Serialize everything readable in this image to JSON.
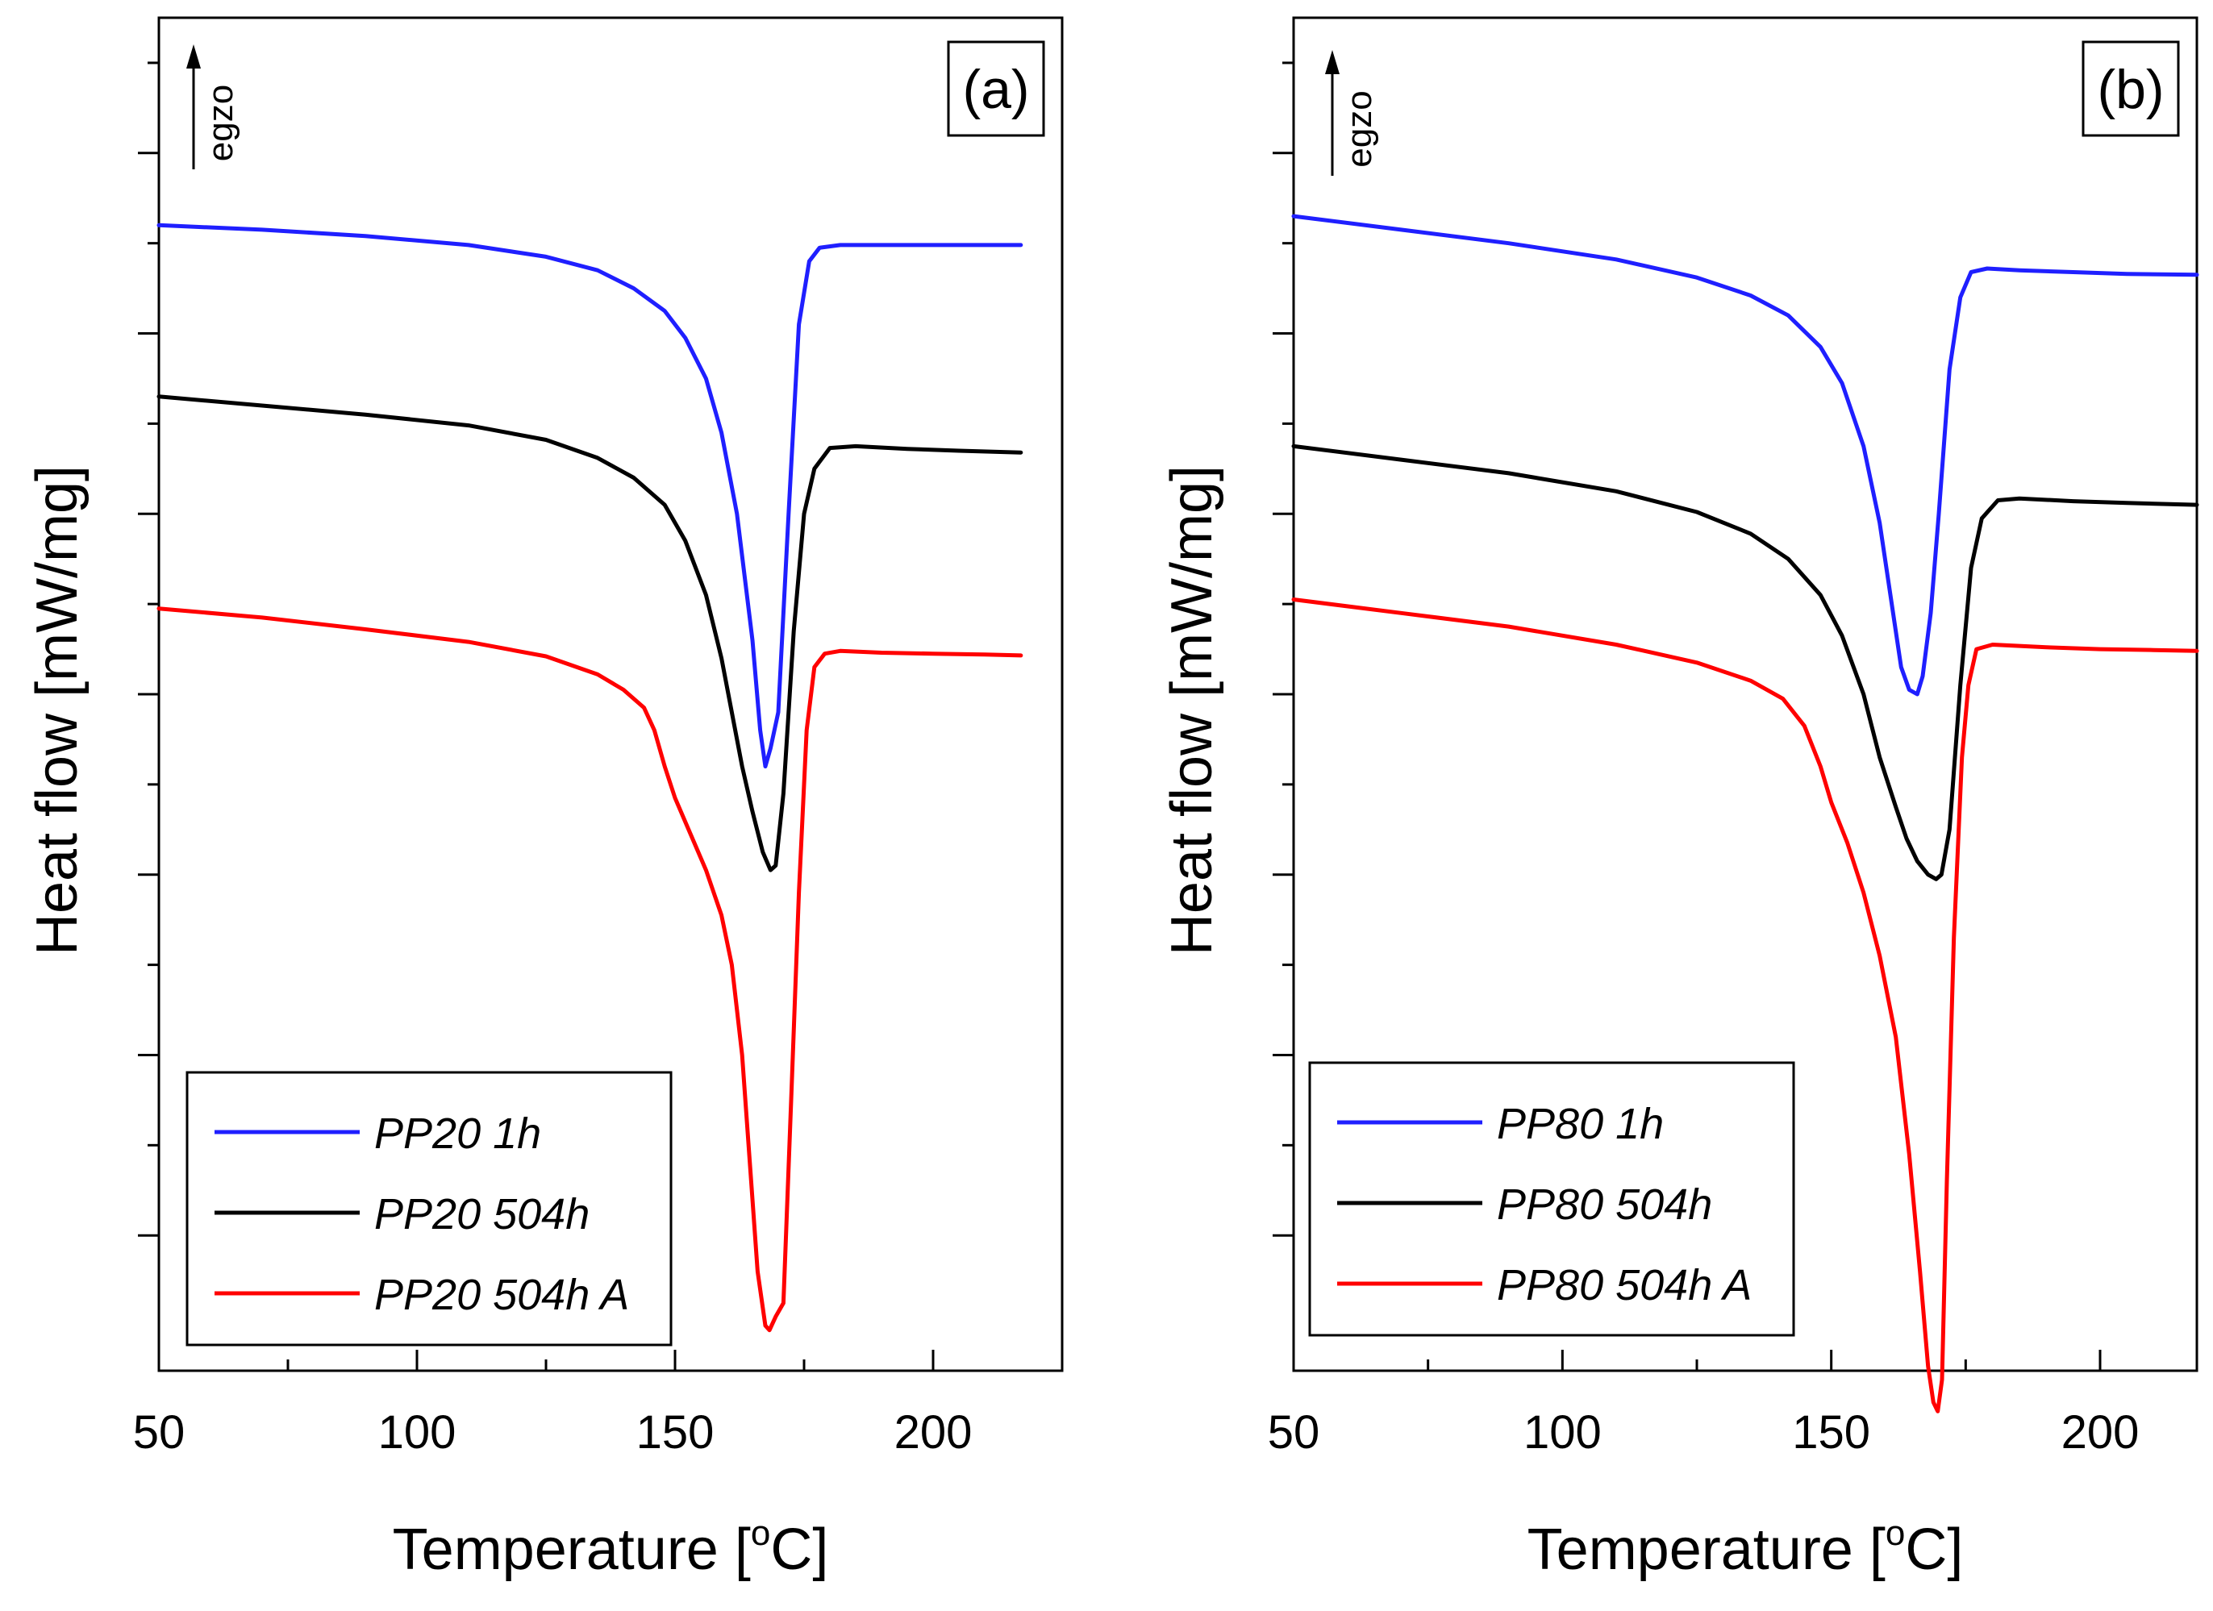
{
  "chart_data": [
    {
      "type": "line",
      "panel_label": "(a)",
      "xlabel_main": "Temperature [",
      "xlabel_sup": "o",
      "xlabel_unit": "C]",
      "ylabel": "Heat flow [mW/mg]",
      "direction_label": "egzo",
      "xlim": [
        50,
        225
      ],
      "ylim": [
        -1.5,
        13.5
      ],
      "xticks_major": [
        50,
        100,
        150,
        200
      ],
      "xticks_minor": [
        75,
        125,
        175,
        225
      ],
      "yticks": [
        0,
        1,
        2,
        3,
        4,
        5,
        6,
        7,
        8,
        9,
        10,
        11,
        12,
        13
      ],
      "legend_position": "lower-left",
      "series": [
        {
          "name": "PP20 1h",
          "color": "#1f1fff",
          "x": [
            50,
            70,
            90,
            110,
            125,
            135,
            142,
            148,
            152,
            156,
            159,
            162,
            165,
            166.5,
            167.5,
            168.5,
            170,
            172,
            174,
            176,
            178,
            182,
            190,
            200,
            210,
            217
          ],
          "y": [
            11.2,
            11.15,
            11.08,
            10.98,
            10.85,
            10.7,
            10.5,
            10.25,
            9.95,
            9.5,
            8.9,
            8.0,
            6.6,
            5.6,
            5.2,
            5.4,
            5.8,
            8.0,
            10.1,
            10.8,
            10.95,
            10.98,
            10.98,
            10.98,
            10.98,
            10.98
          ]
        },
        {
          "name": "PP20 504h",
          "color": "#000000",
          "x": [
            50,
            70,
            90,
            110,
            125,
            135,
            142,
            148,
            152,
            156,
            159,
            161,
            163,
            165,
            167,
            168.5,
            169.5,
            171,
            173,
            175,
            177,
            180,
            185,
            195,
            205,
            217
          ],
          "y": [
            9.3,
            9.2,
            9.1,
            8.98,
            8.82,
            8.62,
            8.4,
            8.1,
            7.7,
            7.1,
            6.4,
            5.8,
            5.2,
            4.7,
            4.25,
            4.05,
            4.1,
            4.9,
            6.7,
            8.0,
            8.5,
            8.73,
            8.75,
            8.72,
            8.7,
            8.68
          ]
        },
        {
          "name": "PP20 504h A",
          "color": "#ff0000",
          "x": [
            50,
            70,
            90,
            110,
            125,
            135,
            140,
            144,
            146,
            148,
            150,
            153,
            156,
            159,
            161,
            163,
            164.5,
            166,
            167.5,
            168.3,
            169.5,
            171,
            172.5,
            174,
            175.5,
            177,
            179,
            182,
            190,
            200,
            210,
            217
          ],
          "y": [
            6.95,
            6.85,
            6.72,
            6.58,
            6.42,
            6.22,
            6.05,
            5.85,
            5.6,
            5.2,
            4.85,
            4.45,
            4.05,
            3.55,
            3.0,
            2.0,
            0.8,
            -0.4,
            -1.0,
            -1.05,
            -0.9,
            -0.75,
            1.5,
            3.8,
            5.6,
            6.3,
            6.45,
            6.48,
            6.46,
            6.45,
            6.44,
            6.43
          ]
        }
      ]
    },
    {
      "type": "line",
      "panel_label": "(b)",
      "xlabel_main": "Temperature [",
      "xlabel_sup": "o",
      "xlabel_unit": "C]",
      "ylabel": "Heat flow [mW/mg]",
      "direction_label": "egzo",
      "xlim": [
        50,
        218
      ],
      "ylim": [
        -1.5,
        13.5
      ],
      "xticks_major": [
        50,
        100,
        150,
        200
      ],
      "xticks_minor": [
        75,
        125,
        175
      ],
      "yticks": [
        0,
        1,
        2,
        3,
        4,
        5,
        6,
        7,
        8,
        9,
        10,
        11,
        12,
        13
      ],
      "legend_position": "lower-left",
      "series": [
        {
          "name": "PP80 1h",
          "color": "#1f1fff",
          "x": [
            50,
            70,
            90,
            110,
            125,
            135,
            142,
            148,
            152,
            156,
            159,
            161,
            163,
            164.5,
            166,
            167,
            168.5,
            170,
            172,
            174,
            176,
            179,
            185,
            195,
            205,
            218
          ],
          "y": [
            11.3,
            11.15,
            11.0,
            10.82,
            10.62,
            10.42,
            10.2,
            9.85,
            9.45,
            8.75,
            7.9,
            7.1,
            6.3,
            6.05,
            6.0,
            6.2,
            6.9,
            8.0,
            9.6,
            10.4,
            10.68,
            10.72,
            10.7,
            10.68,
            10.66,
            10.65
          ]
        },
        {
          "name": "PP80 504h",
          "color": "#000000",
          "x": [
            50,
            70,
            90,
            110,
            125,
            135,
            142,
            148,
            152,
            156,
            159,
            162,
            164,
            166,
            168,
            169.5,
            170.5,
            172,
            174,
            176,
            178,
            181,
            185,
            195,
            205,
            218
          ],
          "y": [
            8.75,
            8.6,
            8.45,
            8.25,
            8.02,
            7.78,
            7.5,
            7.1,
            6.65,
            6.0,
            5.3,
            4.75,
            4.4,
            4.15,
            4.0,
            3.95,
            4.0,
            4.5,
            6.1,
            7.4,
            7.95,
            8.15,
            8.17,
            8.14,
            8.12,
            8.1
          ]
        },
        {
          "name": "PP80 504h A",
          "color": "#ff0000",
          "x": [
            50,
            70,
            90,
            110,
            125,
            135,
            141,
            145,
            148,
            150,
            153,
            156,
            159,
            162,
            164.5,
            166.5,
            168,
            169,
            169.8,
            170.6,
            171.5,
            172.8,
            174.3,
            175.5,
            177,
            180,
            190,
            200,
            210,
            218
          ],
          "y": [
            7.05,
            6.9,
            6.75,
            6.55,
            6.35,
            6.15,
            5.95,
            5.65,
            5.2,
            4.8,
            4.35,
            3.8,
            3.1,
            2.2,
            0.9,
            -0.4,
            -1.45,
            -1.85,
            -1.95,
            -1.6,
            0.6,
            3.3,
            5.3,
            6.1,
            6.5,
            6.55,
            6.52,
            6.5,
            6.49,
            6.48
          ]
        }
      ]
    }
  ]
}
